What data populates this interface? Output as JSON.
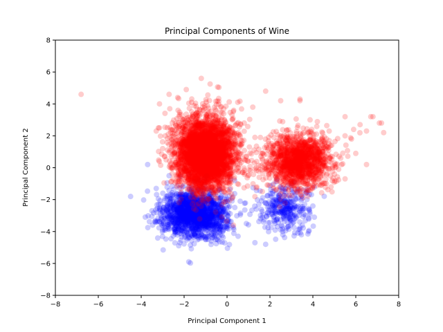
{
  "chart_data": {
    "type": "scatter",
    "title": "Principal Components of Wine",
    "xlabel": "Principal Component 1",
    "ylabel": "Principal Component 2",
    "xlim": [
      -8,
      8
    ],
    "ylim": [
      -8,
      8
    ],
    "xticks": [
      -8,
      -6,
      -4,
      -2,
      0,
      2,
      4,
      6,
      8
    ],
    "yticks": [
      -8,
      -6,
      -4,
      -2,
      0,
      2,
      4,
      6,
      8
    ],
    "grid": false,
    "legend": "none",
    "marker_opacity": 0.2,
    "series": [
      {
        "color": "#0000ff",
        "clusters": [
          {
            "center": [
              -1.5,
              -2.9
            ],
            "spread": [
              0.75,
              0.75
            ],
            "count": 1700
          },
          {
            "center": [
              2.7,
              -2.5
            ],
            "spread": [
              0.55,
              0.7
            ],
            "count": 320
          }
        ],
        "points": [
          [
            -3.7,
            0.2
          ],
          [
            -3.3,
            -1.3
          ],
          [
            -2.7,
            -0.5
          ],
          [
            -3.5,
            -2.7
          ],
          [
            -2.2,
            -4.7
          ],
          [
            -0.3,
            -3.7
          ],
          [
            0.9,
            -3.5
          ],
          [
            1.3,
            -4.7
          ],
          [
            1.8,
            -4.8
          ],
          [
            2.6,
            -4.2
          ],
          [
            3.3,
            -4.1
          ],
          [
            3.8,
            -4.0
          ],
          [
            4.0,
            -2.4
          ],
          [
            -1.0,
            -4.5
          ],
          [
            -0.2,
            -4.0
          ]
        ]
      },
      {
        "color": "#ff0000",
        "clusters": [
          {
            "center": [
              -1.0,
              0.9
            ],
            "spread": [
              0.7,
              1.15
            ],
            "count": 3600
          },
          {
            "center": [
              3.3,
              0.4
            ],
            "spread": [
              0.75,
              0.85
            ],
            "count": 1500
          }
        ],
        "points": [
          [
            -6.8,
            4.6
          ],
          [
            -1.2,
            5.6
          ],
          [
            -2.7,
            4.6
          ],
          [
            -2.3,
            4.4
          ],
          [
            0.5,
            4.1
          ],
          [
            1.8,
            4.8
          ],
          [
            2.5,
            4.2
          ],
          [
            3.4,
            4.2
          ],
          [
            3.4,
            4.3
          ],
          [
            5.5,
            3.2
          ],
          [
            6.7,
            3.2
          ],
          [
            6.8,
            3.2
          ],
          [
            7.2,
            2.8
          ],
          [
            7.1,
            2.8
          ],
          [
            7.3,
            2.2
          ],
          [
            6.5,
            2.3
          ],
          [
            6.2,
            2.7
          ],
          [
            5.9,
            2.4
          ],
          [
            5.5,
            2.0
          ],
          [
            5.8,
            1.8
          ],
          [
            6.0,
            0.9
          ],
          [
            6.5,
            0.2
          ],
          [
            5.3,
            0.6
          ],
          [
            5.5,
            -0.7
          ],
          [
            4.9,
            0.7
          ],
          [
            5.2,
            -0.1
          ],
          [
            -3.2,
            2.5
          ],
          [
            -3.0,
            1.2
          ],
          [
            -2.9,
            0.7
          ],
          [
            -3.3,
            2.3
          ],
          [
            0.7,
            1.5
          ],
          [
            1.3,
            1.9
          ],
          [
            1.5,
            -0.6
          ],
          [
            0.8,
            2.8
          ],
          [
            0.3,
            -3.6
          ],
          [
            1.2,
            3.8
          ],
          [
            -1.9,
            4.9
          ],
          [
            2.0,
            1.4
          ]
        ]
      }
    ]
  }
}
